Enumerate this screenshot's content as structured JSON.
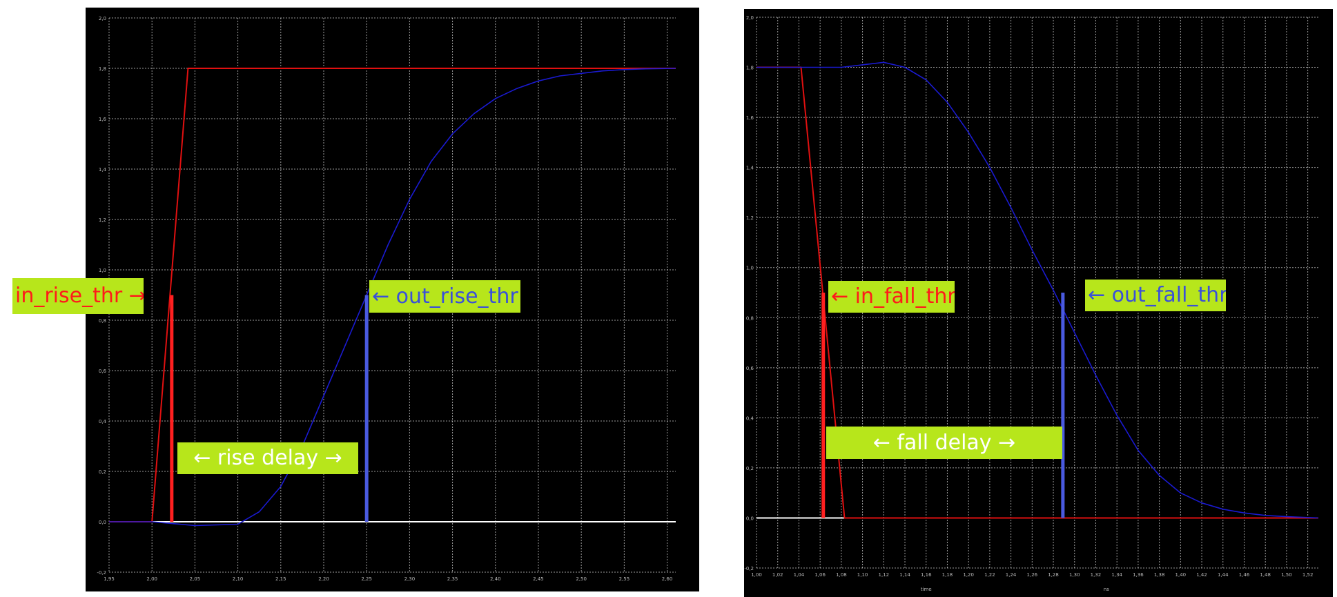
{
  "colors": {
    "background": "#000000",
    "grid": "#d0d0d0",
    "input_signal": "#e01010",
    "output_signal": "#1a1ad0",
    "in_threshold_marker": "#ff2020",
    "out_threshold_marker": "#4a5ae0",
    "label_background": "#b7e61b"
  },
  "labels": {
    "in_rise_thr": "in_rise_thr →",
    "out_rise_thr": "← out_rise_thr",
    "rise_delay": "← rise delay →",
    "in_fall_thr": "← in_fall_thr",
    "out_fall_thr": "← out_fall_thr",
    "fall_delay": "← fall delay →"
  },
  "chart_data": [
    {
      "type": "line",
      "title": "",
      "xlabel": "",
      "ylabel": "",
      "grid": true,
      "xlim": [
        1.95,
        2.61
      ],
      "ylim": [
        -0.2,
        2.0
      ],
      "x_ticks": [
        "1,95",
        "2,00",
        "2,05",
        "2,10",
        "2,15",
        "2,20",
        "2,25",
        "2,30",
        "2,35",
        "2,40",
        "2,45",
        "2,50",
        "2,55",
        "2,60"
      ],
      "y_ticks": [
        "-0,2",
        "0,0",
        "0,2",
        "0,4",
        "0,6",
        "0,8",
        "1,0",
        "1,2",
        "1,4",
        "1,6",
        "1,8",
        "2,0"
      ],
      "series": [
        {
          "role": "input",
          "x": [
            1.95,
            2.0,
            2.042,
            2.61
          ],
          "y": [
            0.0,
            0.0,
            1.8,
            1.8
          ]
        },
        {
          "role": "output",
          "x": [
            1.95,
            2.0,
            2.05,
            2.1,
            2.125,
            2.15,
            2.175,
            2.2,
            2.225,
            2.25,
            2.275,
            2.3,
            2.325,
            2.35,
            2.375,
            2.4,
            2.425,
            2.45,
            2.475,
            2.5,
            2.525,
            2.55,
            2.575,
            2.61
          ],
          "y": [
            0.0,
            0.0,
            -0.015,
            -0.01,
            0.04,
            0.14,
            0.3,
            0.5,
            0.7,
            0.9,
            1.1,
            1.28,
            1.43,
            1.54,
            1.62,
            1.68,
            1.72,
            1.75,
            1.77,
            1.78,
            1.79,
            1.795,
            1.798,
            1.8
          ]
        }
      ],
      "markers": [
        {
          "role": "in_threshold",
          "x": 2.023,
          "y0": 0.0,
          "y1": 0.9
        },
        {
          "role": "out_threshold",
          "x": 2.25,
          "y0": 0.0,
          "y1": 0.9
        }
      ],
      "annotations": [
        {
          "text_ref": "in_rise_thr"
        },
        {
          "text_ref": "out_rise_thr"
        },
        {
          "text_ref": "rise_delay"
        }
      ]
    },
    {
      "type": "line",
      "title": "",
      "xlabel": "time",
      "x_unit": "ns",
      "ylabel": "",
      "grid": true,
      "xlim": [
        1.0,
        1.53
      ],
      "ylim": [
        -0.2,
        2.0
      ],
      "x_ticks": [
        "1,00",
        "1,02",
        "1,04",
        "1,06",
        "1,08",
        "1,10",
        "1,12",
        "1,14",
        "1,16",
        "1,18",
        "1,20",
        "1,22",
        "1,24",
        "1,26",
        "1,28",
        "1,30",
        "1,32",
        "1,34",
        "1,36",
        "1,38",
        "1,40",
        "1,42",
        "1,44",
        "1,46",
        "1,48",
        "1,50",
        "1,52"
      ],
      "y_ticks": [
        "-0,2",
        "0,0",
        "0,2",
        "0,4",
        "0,6",
        "0,8",
        "1,0",
        "1,2",
        "1,4",
        "1,6",
        "1,8",
        "2,0"
      ],
      "series": [
        {
          "role": "input",
          "x": [
            1.0,
            1.042,
            1.083,
            1.53
          ],
          "y": [
            1.8,
            1.8,
            0.0,
            0.0
          ]
        },
        {
          "role": "output",
          "x": [
            1.0,
            1.04,
            1.08,
            1.1,
            1.12,
            1.14,
            1.16,
            1.18,
            1.2,
            1.22,
            1.24,
            1.26,
            1.28,
            1.3,
            1.32,
            1.34,
            1.36,
            1.38,
            1.4,
            1.42,
            1.44,
            1.46,
            1.48,
            1.5,
            1.53
          ],
          "y": [
            1.8,
            1.8,
            1.8,
            1.81,
            1.82,
            1.8,
            1.75,
            1.66,
            1.54,
            1.4,
            1.24,
            1.07,
            0.91,
            0.74,
            0.57,
            0.41,
            0.27,
            0.17,
            0.1,
            0.06,
            0.035,
            0.02,
            0.01,
            0.005,
            0.0
          ]
        }
      ],
      "markers": [
        {
          "role": "in_threshold",
          "x": 1.063,
          "y0": 0.0,
          "y1": 0.9
        },
        {
          "role": "out_threshold",
          "x": 1.289,
          "y0": 0.0,
          "y1": 0.9
        }
      ],
      "annotations": [
        {
          "text_ref": "in_fall_thr"
        },
        {
          "text_ref": "out_fall_thr"
        },
        {
          "text_ref": "fall_delay"
        }
      ]
    }
  ]
}
